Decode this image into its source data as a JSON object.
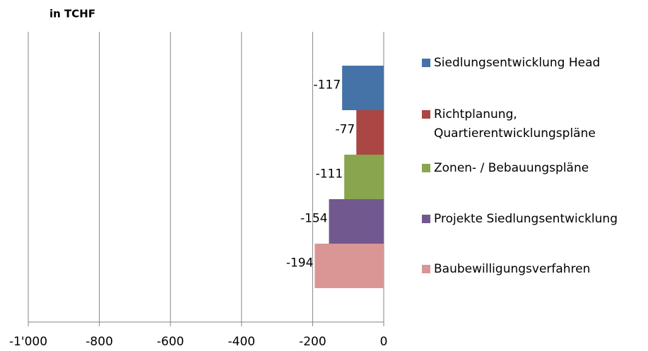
{
  "chart_data": {
    "type": "hbar",
    "title": "in TCHF",
    "categories": [
      null
    ],
    "series": [
      {
        "name": "Siedlungsentwicklung Head",
        "color": "#4572a7",
        "values": [
          -117
        ]
      },
      {
        "name": "Richtplanung, Quartierentwicklungspläne",
        "color": "#aa4643",
        "values": [
          -77
        ]
      },
      {
        "name": "Zonen- / Bebauungspläne",
        "color": "#89a54e",
        "values": [
          -111
        ]
      },
      {
        "name": "Projekte Siedlungsentwicklung",
        "color": "#71588f",
        "values": [
          -154
        ]
      },
      {
        "name": "Baubewilligungsverfahren",
        "color": "#d99694",
        "values": [
          -194
        ]
      }
    ],
    "xlim": [
      -1000,
      0
    ],
    "xticks": [
      {
        "value": -1000,
        "label": "-1'000"
      },
      -800,
      -600,
      -400,
      -200,
      0
    ],
    "grid": true,
    "legend": "right"
  }
}
